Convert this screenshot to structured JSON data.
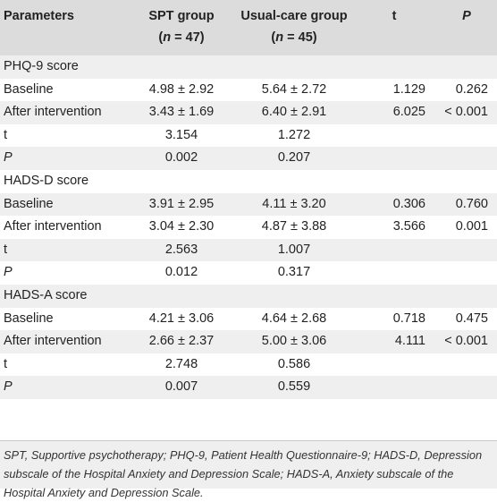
{
  "header": {
    "parameters": "Parameters",
    "spt": {
      "line1": "SPT group",
      "n_prefix": "(",
      "n_var": "n",
      "n_suffix": " = 47)"
    },
    "usual": {
      "line1": "Usual-care group",
      "n_prefix": "(",
      "n_var": "n",
      "n_suffix": " = 45)"
    },
    "t": "t",
    "p": "P"
  },
  "sections": [
    {
      "title": "PHQ-9 score",
      "rows": [
        {
          "label": "Baseline",
          "spt": "4.98 ± 2.92",
          "usual": "5.64 ± 2.72",
          "t": "1.129",
          "p": "0.262"
        },
        {
          "label": "After intervention",
          "spt": "3.43 ± 1.69",
          "usual": "6.40 ± 2.91",
          "t": "6.025",
          "p": "< 0.001"
        },
        {
          "label": "t",
          "spt": "3.154",
          "usual": "1.272",
          "t": "",
          "p": ""
        },
        {
          "label": "P",
          "spt": "0.002",
          "usual": "0.207",
          "t": "",
          "p": ""
        }
      ]
    },
    {
      "title": "HADS-D score",
      "rows": [
        {
          "label": "Baseline",
          "spt": "3.91 ± 2.95",
          "usual": "4.11 ± 3.20",
          "t": "0.306",
          "p": "0.760"
        },
        {
          "label": "After intervention",
          "spt": "3.04 ± 2.30",
          "usual": "4.87 ± 3.88",
          "t": "3.566",
          "p": "0.001"
        },
        {
          "label": "t",
          "spt": "2.563",
          "usual": "1.007",
          "t": "",
          "p": ""
        },
        {
          "label": "P",
          "spt": "0.012",
          "usual": "0.317",
          "t": "",
          "p": ""
        }
      ]
    },
    {
      "title": "HADS-A score",
      "rows": [
        {
          "label": "Baseline",
          "spt": "4.21 ± 3.06",
          "usual": "4.64 ± 2.68",
          "t": "0.718",
          "p": "0.475"
        },
        {
          "label": "After intervention",
          "spt": "2.66 ± 2.37",
          "usual": "5.00 ± 3.06",
          "t": "4.111",
          "p": "< 0.001"
        },
        {
          "label": "t",
          "spt": "2.748",
          "usual": "0.586",
          "t": "",
          "p": ""
        },
        {
          "label": "P",
          "spt": "0.007",
          "usual": "0.559",
          "t": "",
          "p": ""
        }
      ]
    }
  ],
  "footnote": "SPT, Supportive psychotherapy; PHQ-9, Patient Health Questionnaire-9; HADS-D, Depression subscale of the Hospital Anxiety and Depression Scale; HADS-A, Anxiety subscale of the Hospital Anxiety and Depression Scale."
}
